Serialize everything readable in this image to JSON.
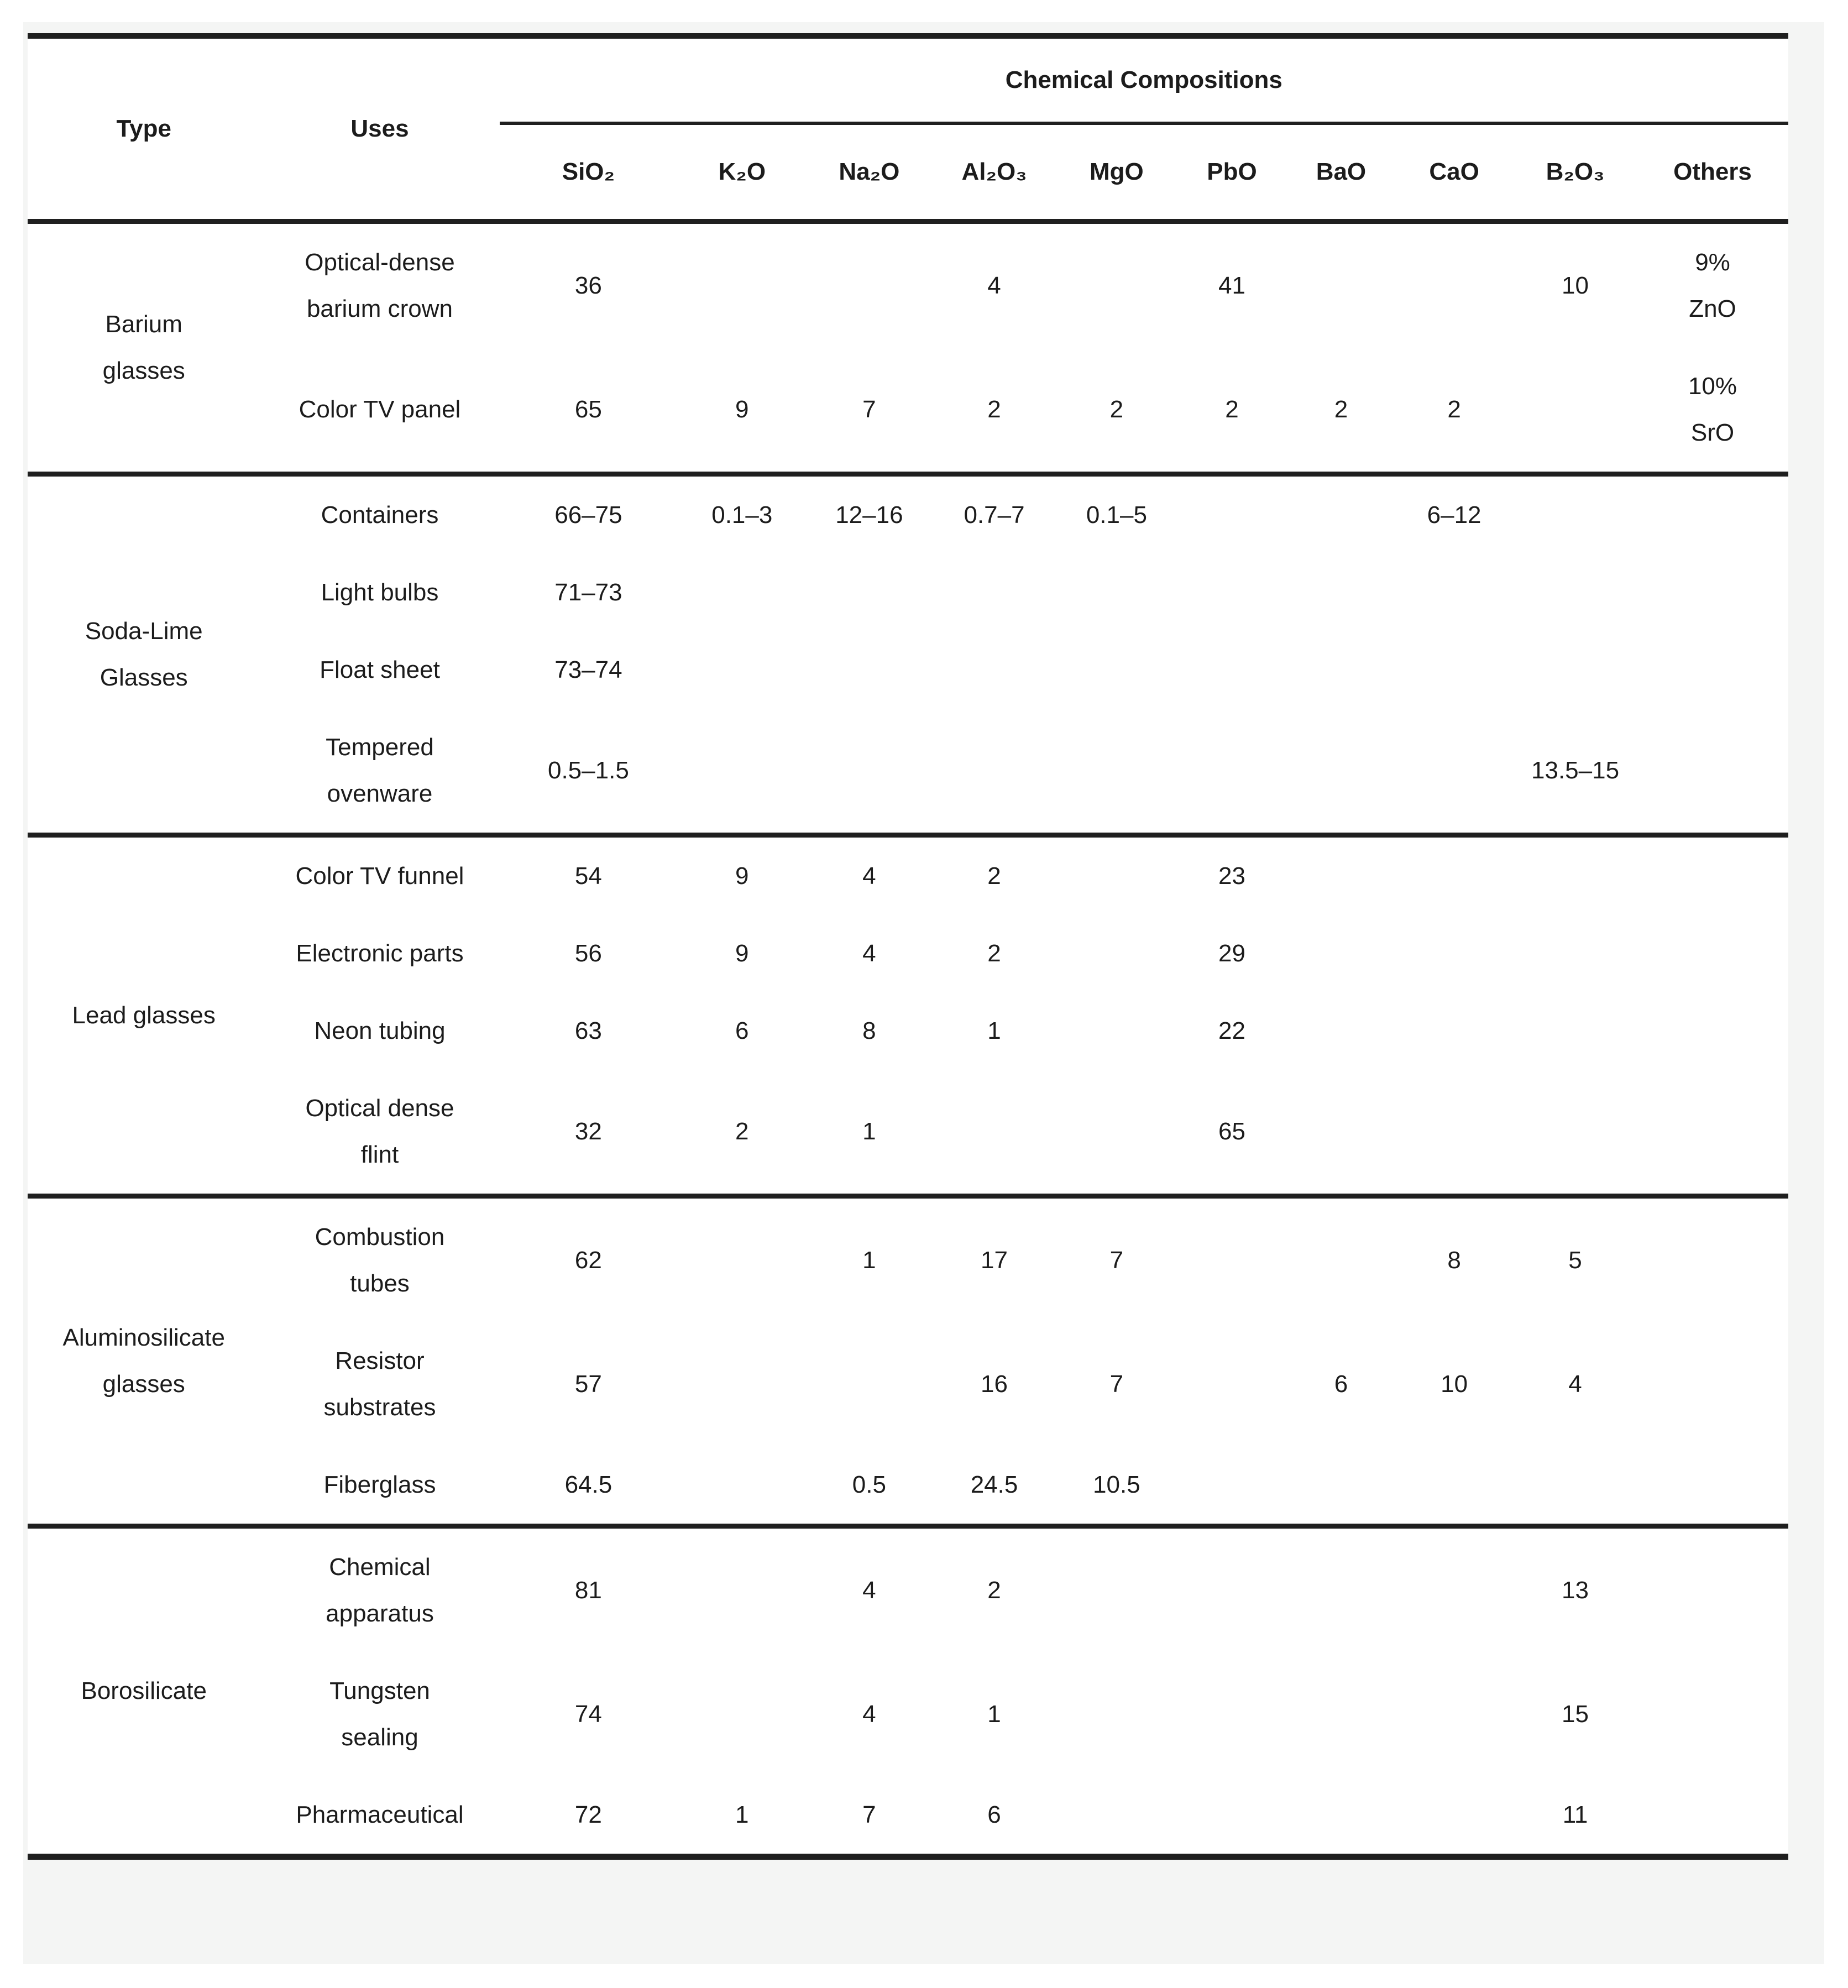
{
  "page": {
    "panel_bg": "#f4f5f4",
    "table_bg": "#ffffff",
    "rule_color": "#1f1f1f",
    "text_color": "#1c1c1c"
  },
  "table": {
    "header": {
      "type": "Type",
      "uses": "Uses",
      "group": "Chemical Compositions"
    },
    "chem_columns": [
      "SiO₂",
      "K₂O",
      "Na₂O",
      "Al₂O₃",
      "MgO",
      "PbO",
      "BaO",
      "CaO",
      "B₂O₃",
      "Others"
    ],
    "sections": [
      {
        "type": "Barium\nglasses",
        "rows": [
          {
            "use": "Optical-dense\nbarium crown",
            "values": [
              "36",
              "",
              "",
              "4",
              "",
              "41",
              "",
              "",
              "10",
              "9%\nZnO"
            ]
          },
          {
            "use": "Color TV panel",
            "values": [
              "65",
              "9",
              "7",
              "2",
              "2",
              "2",
              "2",
              "2",
              "",
              "10%\nSrO"
            ]
          }
        ]
      },
      {
        "type": "Soda-Lime\nGlasses",
        "rows": [
          {
            "use": "Containers",
            "values": [
              "66–75",
              "0.1–3",
              "12–16",
              "0.7–7",
              "0.1–5",
              "",
              "",
              "6–12",
              "",
              ""
            ]
          },
          {
            "use": "Light bulbs",
            "values": [
              "71–73",
              "",
              "",
              "",
              "",
              "",
              "",
              "",
              "",
              ""
            ]
          },
          {
            "use": "Float sheet",
            "values": [
              "73–74",
              "",
              "",
              "",
              "",
              "",
              "",
              "",
              "",
              ""
            ]
          },
          {
            "use": "Tempered\novenware",
            "values": [
              "0.5–1.5",
              "",
              "",
              "",
              "",
              "",
              "",
              "",
              "13.5–15",
              ""
            ]
          }
        ]
      },
      {
        "type": "Lead glasses",
        "rows": [
          {
            "use": "Color TV funnel",
            "values": [
              "54",
              "9",
              "4",
              "2",
              "",
              "23",
              "",
              "",
              "",
              ""
            ]
          },
          {
            "use": "Electronic parts",
            "values": [
              "56",
              "9",
              "4",
              "2",
              "",
              "29",
              "",
              "",
              "",
              ""
            ]
          },
          {
            "use": "Neon tubing",
            "values": [
              "63",
              "6",
              "8",
              "1",
              "",
              "22",
              "",
              "",
              "",
              ""
            ]
          },
          {
            "use": "Optical dense\nflint",
            "values": [
              "32",
              "2",
              "1",
              "",
              "",
              "65",
              "",
              "",
              "",
              ""
            ]
          }
        ]
      },
      {
        "type": "Aluminosilicate\nglasses",
        "rows": [
          {
            "use": "Combustion\ntubes",
            "values": [
              "62",
              "",
              "1",
              "17",
              "7",
              "",
              "",
              "8",
              "5",
              ""
            ]
          },
          {
            "use": "Resistor\nsubstrates",
            "values": [
              "57",
              "",
              "",
              "16",
              "7",
              "",
              "6",
              "10",
              "4",
              ""
            ]
          },
          {
            "use": "Fiberglass",
            "values": [
              "64.5",
              "",
              "0.5",
              "24.5",
              "10.5",
              "",
              "",
              "",
              "",
              ""
            ]
          }
        ]
      },
      {
        "type": "Borosilicate",
        "rows": [
          {
            "use": "Chemical\napparatus",
            "values": [
              "81",
              "",
              "4",
              "2",
              "",
              "",
              "",
              "",
              "13",
              ""
            ]
          },
          {
            "use": "Tungsten\nsealing",
            "values": [
              "74",
              "",
              "4",
              "1",
              "",
              "",
              "",
              "",
              "15",
              ""
            ]
          },
          {
            "use": "Pharmaceutical",
            "values": [
              "72",
              "1",
              "7",
              "6",
              "",
              "",
              "",
              "",
              "11",
              ""
            ]
          }
        ]
      }
    ]
  }
}
